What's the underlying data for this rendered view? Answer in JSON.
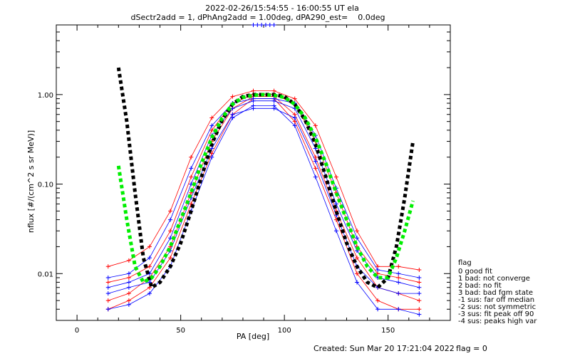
{
  "chart_data": {
    "type": "line",
    "title": "2022-02-26/15:54:55 - 16:00:55 UT ela",
    "subtitle": "dSectr2add = 1, dPhAng2add = 1.00deg, dPA290_est=    0.0deg",
    "xlabel": "PA [deg]",
    "ylabel": "nflux [#/(cm^2 s sr MeV)]",
    "xlim": [
      -10,
      180
    ],
    "ylim": [
      0.003,
      6.0
    ],
    "yscale": "log",
    "x_ticks": [
      0,
      50,
      100,
      150
    ],
    "x_tick_labels": [
      "0",
      "50",
      "100",
      "150"
    ],
    "y_ticks": [
      0.01,
      0.1,
      1.0
    ],
    "y_tick_labels": [
      "0.01",
      "0.10",
      "1.00"
    ],
    "grid": false,
    "legend_position": "right-bottom",
    "legend_title": "flag",
    "legend_entries": [
      " 0 good fit",
      " 1 bad: not converge",
      " 2 bad: no fit",
      " 3 bad: bad fgm state",
      "-1 sus: far off median",
      "-2 sus: not symmetric",
      "-3 sus: fit peak off 90",
      "-4 sus: peaks high var"
    ],
    "colors": {
      "red_series": "#ff0000",
      "blue_series": "#0000ff",
      "green_fit": "#00ee00",
      "black_fit": "#000000"
    },
    "series": [
      {
        "color": "red",
        "style": "line-plus",
        "x": [
          15,
          25,
          35,
          45,
          55,
          65,
          75,
          85,
          95,
          105,
          115,
          125,
          135,
          145,
          155,
          165
        ],
        "y": [
          0.008,
          0.009,
          0.012,
          0.03,
          0.12,
          0.4,
          0.8,
          1.0,
          1.0,
          0.8,
          0.3,
          0.08,
          0.02,
          0.01,
          0.009,
          0.008
        ]
      },
      {
        "color": "red",
        "style": "line-plus",
        "x": [
          15,
          25,
          35,
          45,
          55,
          65,
          75,
          85,
          95,
          105,
          115,
          125,
          135,
          145,
          155,
          165
        ],
        "y": [
          0.005,
          0.006,
          0.009,
          0.02,
          0.08,
          0.3,
          0.7,
          0.95,
          0.95,
          0.6,
          0.2,
          0.05,
          0.015,
          0.007,
          0.006,
          0.005
        ]
      },
      {
        "color": "red",
        "style": "line-plus",
        "x": [
          15,
          25,
          35,
          45,
          55,
          65,
          75,
          85,
          95,
          105,
          115,
          125,
          135,
          145,
          155,
          165
        ],
        "y": [
          0.012,
          0.014,
          0.02,
          0.05,
          0.2,
          0.55,
          0.95,
          1.1,
          1.1,
          0.9,
          0.45,
          0.12,
          0.03,
          0.012,
          0.012,
          0.011
        ]
      },
      {
        "color": "red",
        "style": "line-plus",
        "x": [
          15,
          25,
          35,
          45,
          55,
          65,
          75,
          85,
          95,
          105,
          115,
          125,
          135,
          145,
          155,
          165
        ],
        "y": [
          0.004,
          0.005,
          0.007,
          0.015,
          0.06,
          0.22,
          0.6,
          0.9,
          0.9,
          0.5,
          0.15,
          0.04,
          0.01,
          0.005,
          0.004,
          0.004
        ]
      },
      {
        "color": "blue",
        "style": "line-plus",
        "x": [
          15,
          25,
          35,
          45,
          55,
          65,
          75,
          85,
          95,
          105,
          115,
          125,
          135,
          145,
          155,
          165
        ],
        "y": [
          0.007,
          0.008,
          0.01,
          0.025,
          0.1,
          0.35,
          0.7,
          0.85,
          0.85,
          0.7,
          0.25,
          0.06,
          0.018,
          0.009,
          0.008,
          0.007
        ]
      },
      {
        "color": "blue",
        "style": "line-plus",
        "x": [
          15,
          25,
          35,
          45,
          55,
          65,
          75,
          85,
          95,
          105,
          115,
          125,
          135,
          145,
          155,
          165
        ],
        "y": [
          0.004,
          0.0045,
          0.006,
          0.012,
          0.05,
          0.2,
          0.55,
          0.75,
          0.75,
          0.45,
          0.12,
          0.03,
          0.008,
          0.004,
          0.004,
          0.0035
        ]
      },
      {
        "color": "blue",
        "style": "line-plus",
        "x": [
          15,
          25,
          35,
          45,
          55,
          65,
          75,
          85,
          95,
          105,
          115,
          125,
          135,
          145,
          155,
          165
        ],
        "y": [
          0.009,
          0.01,
          0.015,
          0.04,
          0.15,
          0.45,
          0.8,
          0.9,
          0.9,
          0.8,
          0.35,
          0.09,
          0.025,
          0.011,
          0.01,
          0.009
        ]
      },
      {
        "color": "blue",
        "style": "line-plus",
        "x": [
          15,
          25,
          35,
          45,
          55,
          65,
          75,
          85,
          95,
          105,
          115,
          125,
          135,
          145,
          155,
          165
        ],
        "y": [
          0.006,
          0.007,
          0.008,
          0.018,
          0.07,
          0.25,
          0.6,
          0.7,
          0.7,
          0.55,
          0.18,
          0.045,
          0.012,
          0.007,
          0.006,
          0.006
        ]
      },
      {
        "color": "blue",
        "style": "line-plus",
        "x": [
          85,
          87,
          89,
          91,
          93,
          95
        ],
        "y": [
          6.0,
          6.0,
          6.0,
          6.0,
          6.0,
          6.0
        ],
        "note": ""
      }
    ],
    "fits": [
      {
        "color": "black",
        "style": "thick-dashed",
        "x": [
          20,
          24,
          28,
          32,
          36,
          40,
          45,
          50,
          55,
          60,
          65,
          70,
          75,
          80,
          85,
          90,
          95,
          100,
          105,
          110,
          115,
          120,
          125,
          130,
          135,
          140,
          145,
          150,
          154,
          158,
          162
        ],
        "y": [
          2.0,
          0.5,
          0.08,
          0.015,
          0.007,
          0.008,
          0.012,
          0.022,
          0.05,
          0.12,
          0.28,
          0.52,
          0.78,
          0.95,
          1.0,
          1.0,
          1.0,
          0.95,
          0.78,
          0.52,
          0.28,
          0.12,
          0.05,
          0.022,
          0.012,
          0.008,
          0.007,
          0.009,
          0.02,
          0.07,
          0.3
        ]
      },
      {
        "color": "green",
        "style": "thick-dashed",
        "x": [
          20,
          24,
          28,
          32,
          36,
          40,
          45,
          50,
          55,
          60,
          65,
          70,
          75,
          80,
          85,
          90,
          95,
          100,
          105,
          110,
          115,
          120,
          125,
          130,
          135,
          140,
          145,
          150,
          154,
          158,
          162
        ],
        "y": [
          0.16,
          0.04,
          0.012,
          0.008,
          0.009,
          0.012,
          0.02,
          0.04,
          0.08,
          0.17,
          0.33,
          0.55,
          0.78,
          0.93,
          0.98,
          1.0,
          0.98,
          0.93,
          0.78,
          0.55,
          0.33,
          0.17,
          0.08,
          0.04,
          0.02,
          0.012,
          0.009,
          0.009,
          0.015,
          0.03,
          0.065
        ]
      }
    ]
  },
  "footer": {
    "created": "Created: Sun Mar 20 17:21:04 2022",
    "flag": "flag = 0"
  }
}
